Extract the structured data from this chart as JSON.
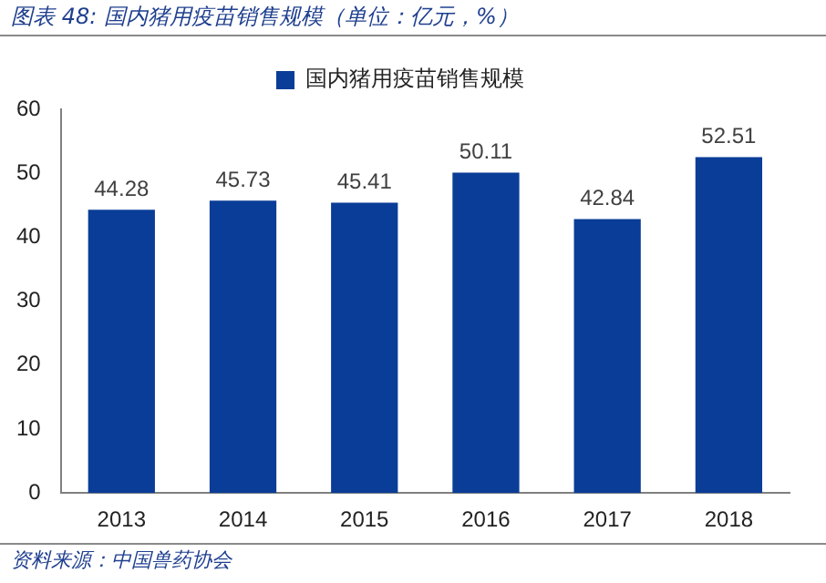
{
  "chart_data": {
    "type": "bar",
    "title": "图表 48:  国内猪用疫苗销售规模（单位：亿元，%）",
    "categories": [
      "2013",
      "2014",
      "2015",
      "2016",
      "2017",
      "2018"
    ],
    "series": [
      {
        "name": "国内猪用疫苗销售规模",
        "color": "#0a3d97",
        "values": [
          44.28,
          45.73,
          45.41,
          50.11,
          42.84,
          52.51
        ]
      }
    ],
    "ylim": [
      0,
      60
    ],
    "yticks": [
      0,
      10,
      20,
      30,
      40,
      50,
      60
    ],
    "grid": false,
    "legend": "top",
    "data_labels": true,
    "annotations": [
      "资料来源：中国兽药协会"
    ]
  }
}
